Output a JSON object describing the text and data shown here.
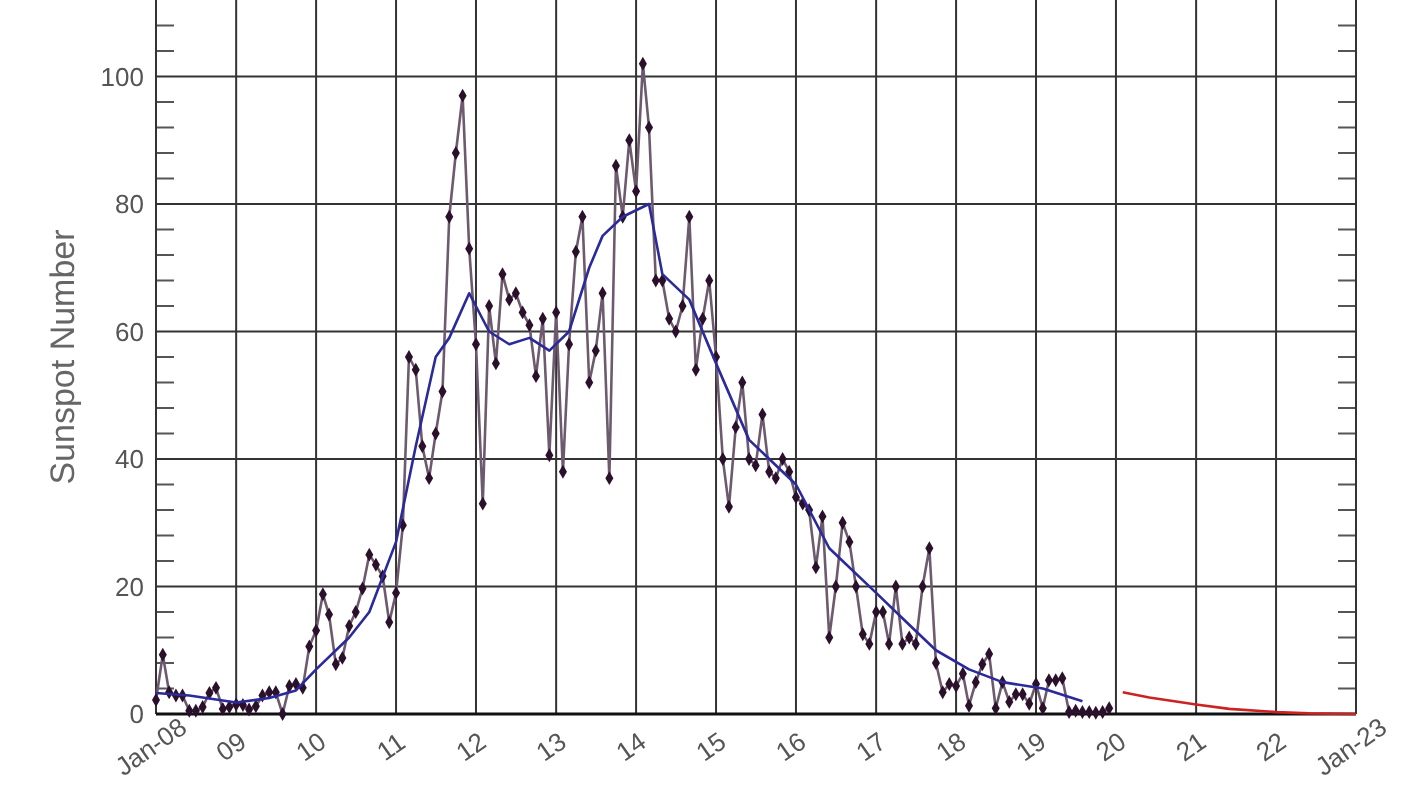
{
  "chart_data": {
    "type": "line",
    "ylabel": "Sunspot Number",
    "xlim": [
      "2008-01",
      "2023-01"
    ],
    "ylim": [
      0,
      112
    ],
    "xticks": [
      {
        "value": "2008-01",
        "label": "Jan-08"
      },
      {
        "value": "2009-01",
        "label": "09"
      },
      {
        "value": "2010-01",
        "label": "10"
      },
      {
        "value": "2011-01",
        "label": "11"
      },
      {
        "value": "2012-01",
        "label": "12"
      },
      {
        "value": "2013-01",
        "label": "13"
      },
      {
        "value": "2014-01",
        "label": "14"
      },
      {
        "value": "2015-01",
        "label": "15"
      },
      {
        "value": "2016-01",
        "label": "16"
      },
      {
        "value": "2017-01",
        "label": "17"
      },
      {
        "value": "2018-01",
        "label": "18"
      },
      {
        "value": "2019-01",
        "label": "19"
      },
      {
        "value": "2020-01",
        "label": "20"
      },
      {
        "value": "2021-01",
        "label": "21"
      },
      {
        "value": "2022-01",
        "label": "22"
      },
      {
        "value": "2023-01",
        "label": "Jan-23"
      }
    ],
    "yticks": [
      0,
      {
        "value": 4,
        "label": null
      },
      {
        "value": 8,
        "label": null
      },
      {
        "value": 12,
        "label": null
      },
      {
        "value": 16,
        "label": null
      },
      20,
      {
        "value": 24,
        "label": null
      },
      {
        "value": 28,
        "label": null
      },
      {
        "value": 32,
        "label": null
      },
      {
        "value": 36,
        "label": null
      },
      40,
      {
        "value": 44,
        "label": null
      },
      {
        "value": 48,
        "label": null
      },
      {
        "value": 52,
        "label": null
      },
      {
        "value": 56,
        "label": null
      },
      60,
      {
        "value": 64,
        "label": null
      },
      {
        "value": 68,
        "label": null
      },
      {
        "value": 72,
        "label": null
      },
      {
        "value": 76,
        "label": null
      },
      80,
      {
        "value": 84,
        "label": null
      },
      {
        "value": 88,
        "label": null
      },
      {
        "value": 92,
        "label": null
      },
      {
        "value": 96,
        "label": null
      },
      100,
      {
        "value": 104,
        "label": null
      },
      {
        "value": 108,
        "label": null
      }
    ],
    "grid": true,
    "series": [
      {
        "color": "#6e5a6e",
        "marker": "diamond",
        "x": [
          "2008-01",
          "2008-02",
          "2008-03",
          "2008-04",
          "2008-05",
          "2008-06",
          "2008-07",
          "2008-08",
          "2008-09",
          "2008-10",
          "2008-11",
          "2008-12",
          "2009-01",
          "2009-02",
          "2009-03",
          "2009-04",
          "2009-05",
          "2009-06",
          "2009-07",
          "2009-08",
          "2009-09",
          "2009-10",
          "2009-11",
          "2009-12",
          "2010-01",
          "2010-02",
          "2010-03",
          "2010-04",
          "2010-05",
          "2010-06",
          "2010-07",
          "2010-08",
          "2010-09",
          "2010-10",
          "2010-11",
          "2010-12",
          "2011-01",
          "2011-02",
          "2011-03",
          "2011-04",
          "2011-05",
          "2011-06",
          "2011-07",
          "2011-08",
          "2011-09",
          "2011-10",
          "2011-11",
          "2011-12",
          "2012-01",
          "2012-02",
          "2012-03",
          "2012-04",
          "2012-05",
          "2012-06",
          "2012-07",
          "2012-08",
          "2012-09",
          "2012-10",
          "2012-11",
          "2012-12",
          "2013-01",
          "2013-02",
          "2013-03",
          "2013-04",
          "2013-05",
          "2013-06",
          "2013-07",
          "2013-08",
          "2013-09",
          "2013-10",
          "2013-11",
          "2013-12",
          "2014-01",
          "2014-02",
          "2014-03",
          "2014-04",
          "2014-05",
          "2014-06",
          "2014-07",
          "2014-08",
          "2014-09",
          "2014-10",
          "2014-11",
          "2014-12",
          "2015-01",
          "2015-02",
          "2015-03",
          "2015-04",
          "2015-05",
          "2015-06",
          "2015-07",
          "2015-08",
          "2015-09",
          "2015-10",
          "2015-11",
          "2015-12",
          "2016-01",
          "2016-02",
          "2016-03",
          "2016-04",
          "2016-05",
          "2016-06",
          "2016-07",
          "2016-08",
          "2016-09",
          "2016-10",
          "2016-11",
          "2016-12",
          "2017-01",
          "2017-02",
          "2017-03",
          "2017-04",
          "2017-05",
          "2017-06",
          "2017-07",
          "2017-08",
          "2017-09",
          "2017-10",
          "2017-11",
          "2017-12",
          "2018-01",
          "2018-02",
          "2018-03",
          "2018-04",
          "2018-05",
          "2018-06",
          "2018-07",
          "2018-08",
          "2018-09",
          "2018-10",
          "2018-11",
          "2018-12",
          "2019-01",
          "2019-02",
          "2019-03",
          "2019-04",
          "2019-05",
          "2019-06",
          "2019-07",
          "2019-08",
          "2019-09",
          "2019-10",
          "2019-11",
          "2019-12"
        ],
        "values": [
          2.2,
          9.3,
          3.4,
          2.9,
          2.9,
          0.5,
          0.5,
          1.1,
          3.3,
          4.1,
          0.8,
          1.1,
          1.5,
          1.4,
          0.7,
          1.2,
          2.9,
          3.4,
          3.4,
          0,
          4.4,
          4.7,
          4.1,
          10.6,
          13.1,
          18.8,
          15.6,
          7.8,
          8.8,
          13.8,
          16,
          19.7,
          25,
          23.4,
          21.6,
          14.4,
          19,
          29.6,
          56,
          54,
          42,
          37,
          44,
          50.6,
          78,
          88,
          97,
          73,
          58,
          33,
          64,
          55,
          69,
          65,
          66,
          63,
          61,
          53,
          62,
          40.6,
          63,
          38,
          58,
          72.5,
          78,
          52,
          57,
          66,
          37,
          86,
          78,
          90,
          82,
          102,
          92,
          68,
          68,
          62,
          60,
          64,
          78,
          54,
          62,
          68,
          56,
          40,
          32.5,
          45,
          52,
          40,
          39,
          47,
          38,
          37,
          40,
          38,
          34,
          33,
          32,
          23,
          31,
          12,
          20,
          30,
          27,
          20,
          12.5,
          11,
          16,
          16,
          11,
          20,
          11,
          12,
          11,
          20,
          26,
          8,
          3.4,
          4.7,
          4.4,
          6.3,
          1.3,
          5,
          7.8,
          9.4,
          0.9,
          5,
          1.9,
          3.1,
          3.1,
          1.6,
          4.7,
          0.9,
          5.3,
          5.3,
          5.6,
          0.3,
          0.5,
          0.3,
          0.3,
          0.2,
          0.3,
          0.9
        ]
      },
      {
        "color": "#2a2a9a",
        "marker": "none",
        "x": [
          "2008-01",
          "2008-06",
          "2009-01",
          "2009-06",
          "2009-10",
          "2010-01",
          "2010-06",
          "2010-09",
          "2011-01",
          "2011-04",
          "2011-07",
          "2011-09",
          "2011-12",
          "2012-03",
          "2012-06",
          "2012-09",
          "2012-12",
          "2013-03",
          "2013-06",
          "2013-08",
          "2013-11",
          "2014-03",
          "2014-05",
          "2014-09",
          "2015-01",
          "2015-06",
          "2016-01",
          "2016-06",
          "2017-01",
          "2017-06",
          "2017-10",
          "2018-03",
          "2018-08",
          "2019-02",
          "2019-08"
        ],
        "values": [
          3.3,
          2.9,
          1.8,
          2.5,
          3.7,
          7,
          12,
          16,
          27,
          42,
          56,
          59,
          66,
          60,
          58,
          59,
          57,
          60,
          70,
          75,
          78,
          80,
          69,
          65,
          55,
          43,
          36,
          26,
          19,
          14,
          10,
          7,
          5,
          4,
          2
        ]
      },
      {
        "color": "#cc2222",
        "marker": "none",
        "x": [
          "2020-02",
          "2020-06",
          "2021-01",
          "2021-06",
          "2022-01",
          "2022-06",
          "2023-01"
        ],
        "values": [
          3.4,
          2.6,
          1.5,
          0.8,
          0.3,
          0.1,
          0
        ]
      }
    ]
  }
}
